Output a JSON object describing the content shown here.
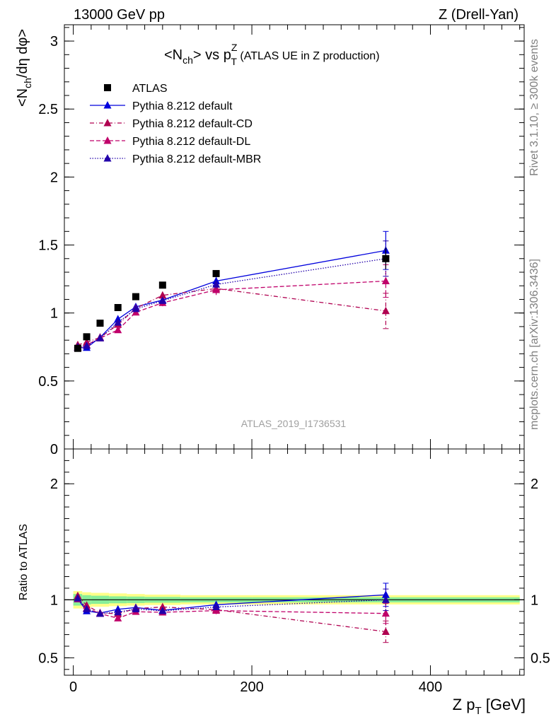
{
  "header": {
    "left": "13000 GeV pp",
    "right": "Z (Drell-Yan)"
  },
  "side_labels": {
    "rivet": "Rivet 3.1.10, ≥ 300k events",
    "mcplots": "mcplots.cern.ch [arXiv:1306.3436]"
  },
  "chart_data": {
    "type": "scatter",
    "title_main": "<N",
    "title_sub1": "ch",
    "title_mid": "> vs p",
    "title_sup": "Z",
    "title_sub2": "T",
    "title_tail": " (ATLAS UE in Z production)",
    "analysis_label": "ATLAS_2019_I1736531",
    "ylabel_parts": {
      "a": "<N",
      "b": "ch",
      "c": "/dη dφ>"
    },
    "ratio_ylabel": "Ratio to ATLAS",
    "xlabel_parts": {
      "a": "Z p",
      "b": "T",
      "c": " [GeV]"
    },
    "xlim": [
      -10,
      505
    ],
    "ylim": [
      0,
      3.12
    ],
    "ratio_ylim": [
      0.35,
      2.3
    ],
    "main_yticks": [
      {
        "v": 0,
        "label": "0"
      },
      {
        "v": 0.5,
        "label": "0.5"
      },
      {
        "v": 1,
        "label": "1"
      },
      {
        "v": 1.5,
        "label": "1.5"
      },
      {
        "v": 2,
        "label": "2"
      },
      {
        "v": 2.5,
        "label": "2.5"
      },
      {
        "v": 3,
        "label": "3"
      }
    ],
    "ratio_yticks": [
      {
        "v": 0.5,
        "label": "0.5"
      },
      {
        "v": 1,
        "label": "1"
      },
      {
        "v": 2,
        "label": "2"
      }
    ],
    "xticks": [
      {
        "v": 0,
        "label": "0"
      },
      {
        "v": 200,
        "label": "200"
      },
      {
        "v": 400,
        "label": "400"
      }
    ],
    "x": [
      5,
      15,
      30,
      50,
      70,
      100,
      160,
      350
    ],
    "band_edges": [
      0,
      10,
      20,
      40,
      60,
      80,
      120,
      200,
      500
    ],
    "band_rel_yellow": [
      0.075,
      0.065,
      0.06,
      0.055,
      0.05,
      0.045,
      0.04,
      0.04
    ],
    "band_rel_green": [
      0.05,
      0.04,
      0.035,
      0.03,
      0.028,
      0.025,
      0.022,
      0.022
    ],
    "series": [
      {
        "name": "ATLAS",
        "color": "#000000",
        "marker": "square",
        "line": "none",
        "values": [
          0.74,
          0.825,
          0.925,
          1.04,
          1.12,
          1.205,
          1.29,
          1.4
        ],
        "errors": [
          0.01,
          0.01,
          0.01,
          0.012,
          0.012,
          0.014,
          0.02,
          0.08
        ]
      },
      {
        "name": "Pythia 8.212 default",
        "color": "#0000dd",
        "marker": "triangle",
        "line": "solid",
        "values": [
          0.745,
          0.745,
          0.82,
          0.955,
          1.045,
          1.095,
          1.235,
          1.46
        ],
        "errors": [
          0.01,
          0.01,
          0.015,
          0.015,
          0.02,
          0.025,
          0.03,
          0.14
        ]
      },
      {
        "name": "Pythia 8.212 default-CD",
        "color": "#b00050",
        "marker": "triangle",
        "line": "dashdot",
        "values": [
          0.765,
          0.785,
          0.82,
          0.915,
          1.035,
          1.13,
          1.18,
          1.015
        ],
        "errors": [
          0.01,
          0.01,
          0.015,
          0.015,
          0.02,
          0.025,
          0.04,
          0.13
        ]
      },
      {
        "name": "Pythia 8.212 default-DL",
        "color": "#c0006a",
        "marker": "triangle",
        "line": "dashed",
        "values": [
          0.745,
          0.765,
          0.815,
          0.875,
          1.005,
          1.075,
          1.17,
          1.235
        ],
        "errors": [
          0.01,
          0.01,
          0.015,
          0.015,
          0.02,
          0.025,
          0.04,
          0.12
        ]
      },
      {
        "name": "Pythia 8.212 default-MBR",
        "color": "#2200aa",
        "marker": "triangle",
        "line": "dotted",
        "values": [
          0.75,
          0.76,
          0.815,
          0.93,
          1.03,
          1.09,
          1.21,
          1.4
        ],
        "errors": [
          0.01,
          0.01,
          0.015,
          0.015,
          0.02,
          0.025,
          0.03,
          0.13
        ]
      }
    ]
  }
}
